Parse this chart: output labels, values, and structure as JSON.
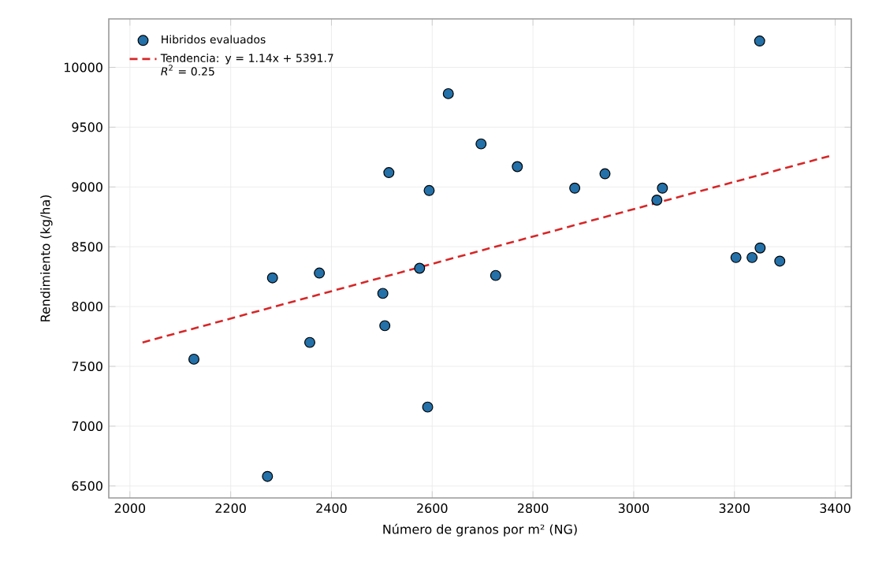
{
  "chart_data": {
    "type": "scatter",
    "xlabel": "Número de granos por m² (NG)",
    "ylabel": "Rendimiento (kg/ha)",
    "xlim": [
      1958,
      3432
    ],
    "ylim": [
      6400,
      10405
    ],
    "xticks": [
      2000,
      2200,
      2400,
      2600,
      2800,
      3000,
      3200,
      3400
    ],
    "yticks": [
      6500,
      7000,
      7500,
      8000,
      8500,
      9000,
      9500,
      10000
    ],
    "grid": true,
    "legend": "top left",
    "marker": "circle",
    "series": [
      {
        "name": "Hibridos evaluados",
        "color": "#2470a8",
        "x": [
          2127,
          2273,
          2283,
          2357,
          2376,
          2502,
          2506,
          2514,
          2575,
          2591,
          2594,
          2632,
          2697,
          2726,
          2769,
          2883,
          2943,
          3046,
          3057,
          3203,
          3235,
          3251,
          3250,
          3290
        ],
        "values": [
          7560,
          6580,
          8240,
          7700,
          8280,
          8110,
          7840,
          9120,
          8320,
          7160,
          8970,
          9780,
          9360,
          8260,
          9170,
          8990,
          9110,
          8890,
          8990,
          8410,
          8410,
          8490,
          10220,
          8380
        ]
      },
      {
        "name": "Tendencia: y = 1.14x + 5391.7 *R*$^{2}$ = 0.25",
        "type": "line",
        "color": "#d62728",
        "line_style": "dashed",
        "marker": "none",
        "x": [
          2025,
          3390
        ],
        "values": [
          7700,
          9260
        ]
      }
    ]
  }
}
